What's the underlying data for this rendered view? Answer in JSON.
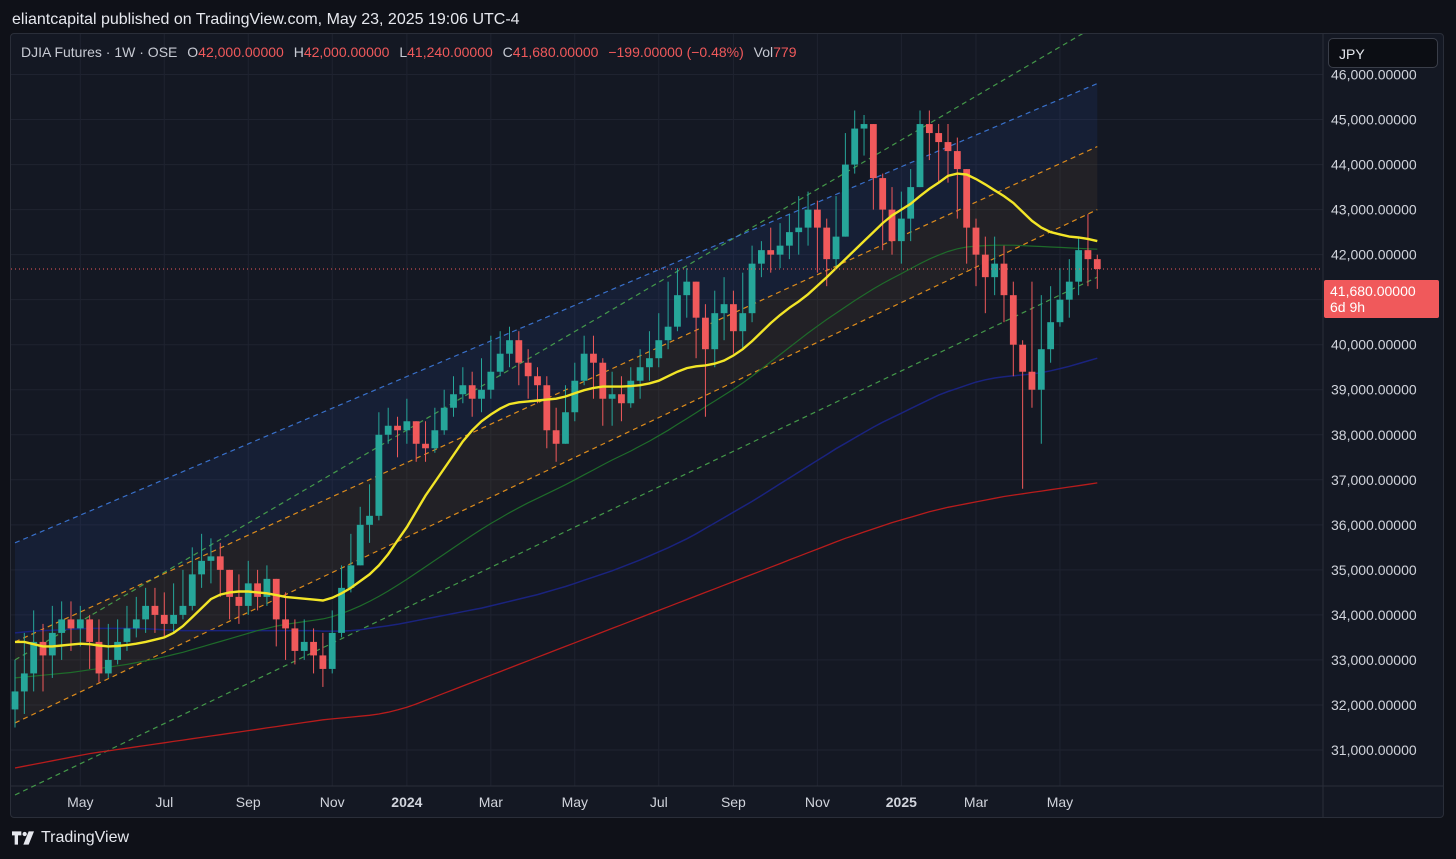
{
  "header": {
    "published": "eliantcapital published on TradingView.com, May 23, 2025 19:06 UTC-4"
  },
  "legend": {
    "symbol": "DJIA Futures · 1W · OSE",
    "o_label": "O",
    "o": "42,000.00000",
    "h_label": "H",
    "h": "42,000.00000",
    "l_label": "L",
    "l": "41,240.00000",
    "c_label": "C",
    "c": "41,680.00000",
    "change": "−199.00000 (−0.48%)",
    "vol_label": "Vol",
    "vol": "779"
  },
  "currency": "JPY",
  "last_price": {
    "value": "41,680.00000",
    "countdown": "6d 9h"
  },
  "footer": {
    "brand": "TradingView"
  },
  "colors": {
    "up": "#26a69a",
    "down": "#f0595b",
    "ma_fast": "#f2e527",
    "ma_mid": "#1e6b2a",
    "ma_slow": "#1a237e",
    "ma_long": "#b71c1c"
  },
  "chart_data": {
    "type": "candlestick",
    "title": "DJIA Futures · 1W · OSE",
    "ylim": [
      30200,
      46900
    ],
    "y_ticks": [
      "46,000.00000",
      "45,000.00000",
      "44,000.00000",
      "43,000.00000",
      "42,000.00000",
      "41,000.00000",
      "40,000.00000",
      "39,000.00000",
      "38,000.00000",
      "37,000.00000",
      "36,000.00000",
      "35,000.00000",
      "34,000.00000",
      "33,000.00000",
      "32,000.00000",
      "31,000.00000"
    ],
    "y_tick_values": [
      46000,
      45000,
      44000,
      43000,
      42000,
      41000,
      40000,
      39000,
      38000,
      37000,
      36000,
      35000,
      34000,
      33000,
      32000,
      31000
    ],
    "x_ticks": [
      {
        "label": "May",
        "week": 7,
        "bold": false
      },
      {
        "label": "Jul",
        "week": 16,
        "bold": false
      },
      {
        "label": "Sep",
        "week": 25,
        "bold": false
      },
      {
        "label": "Nov",
        "week": 34,
        "bold": false
      },
      {
        "label": "2024",
        "week": 42,
        "bold": true
      },
      {
        "label": "Mar",
        "week": 51,
        "bold": false
      },
      {
        "label": "May",
        "week": 60,
        "bold": false
      },
      {
        "label": "Jul",
        "week": 69,
        "bold": false
      },
      {
        "label": "Sep",
        "week": 77,
        "bold": false
      },
      {
        "label": "Nov",
        "week": 86,
        "bold": false
      },
      {
        "label": "2025",
        "week": 95,
        "bold": true
      },
      {
        "label": "Mar",
        "week": 103,
        "bold": false
      },
      {
        "label": "May",
        "week": 112,
        "bold": false
      }
    ],
    "closes": [
      32300,
      32700,
      33400,
      33100,
      33600,
      33900,
      33700,
      33900,
      33400,
      32700,
      33000,
      33400,
      33700,
      33900,
      34200,
      34000,
      33800,
      34000,
      34200,
      34900,
      35200,
      35300,
      35000,
      34400,
      34200,
      34700,
      34400,
      34800,
      33900,
      33700,
      33200,
      33400,
      33100,
      32800,
      33600,
      34600,
      35100,
      36000,
      36200,
      38000,
      38200,
      38100,
      38300,
      37800,
      37700,
      38100,
      38600,
      38900,
      39100,
      38800,
      39000,
      39400,
      39800,
      40100,
      39600,
      39300,
      39100,
      38100,
      37800,
      38500,
      39200,
      39800,
      39600,
      38800,
      38900,
      38700,
      39200,
      39500,
      39700,
      40100,
      40400,
      41100,
      41400,
      40600,
      39900,
      40700,
      40900,
      40300,
      40700,
      41800,
      42100,
      42000,
      42200,
      42500,
      42600,
      43000,
      42600,
      41900,
      42400,
      44000,
      44800,
      44900,
      43700,
      43000,
      42300,
      42800,
      43500,
      44900,
      44700,
      44500,
      44300,
      43900,
      42600,
      42000,
      41500,
      41800,
      41100,
      40000,
      39400,
      39000,
      39900,
      40500,
      41000,
      41400,
      42100,
      41900,
      41680
    ],
    "lows": [
      31500,
      31800,
      32300,
      32300,
      32600,
      33000,
      33200,
      33300,
      32800,
      32500,
      32600,
      32900,
      33200,
      33500,
      33600,
      33600,
      33500,
      33600,
      33900,
      34100,
      34600,
      34700,
      34400,
      33900,
      33800,
      34000,
      34100,
      34200,
      33300,
      33000,
      32900,
      33000,
      32700,
      32400,
      32700,
      33500,
      34500,
      35100,
      35600,
      36100,
      37800,
      37500,
      37800,
      37400,
      37400,
      37600,
      38000,
      38400,
      38700,
      38400,
      38500,
      38800,
      39300,
      39500,
      39100,
      38800,
      38700,
      37700,
      37400,
      37800,
      38300,
      39100,
      38800,
      38200,
      38200,
      38300,
      38600,
      38800,
      39200,
      39500,
      39900,
      40300,
      40600,
      39700,
      38400,
      39500,
      40100,
      39800,
      39900,
      40500,
      41500,
      41600,
      41700,
      41900,
      42000,
      42200,
      41600,
      41300,
      41700,
      42500,
      43800,
      44200,
      43000,
      42100,
      42000,
      41800,
      42300,
      43800,
      44100,
      43600,
      43600,
      42800,
      41800,
      41300,
      40700,
      41100,
      40500,
      39300,
      36800,
      38600,
      37800,
      39600,
      40400,
      40600,
      41100,
      41300,
      41240
    ],
    "highs": [
      33000,
      33600,
      34100,
      33800,
      34200,
      34300,
      34300,
      34200,
      34000,
      33900,
      33800,
      33900,
      34200,
      34400,
      34600,
      34600,
      34500,
      34700,
      35000,
      35500,
      35800,
      35700,
      35600,
      35000,
      34900,
      35200,
      35000,
      35100,
      34700,
      34500,
      33900,
      33900,
      33700,
      33600,
      34100,
      35100,
      35800,
      36400,
      36900,
      38500,
      38600,
      38400,
      38800,
      38300,
      38300,
      38600,
      39000,
      39300,
      39500,
      39400,
      39700,
      40200,
      40300,
      40400,
      40300,
      39900,
      39500,
      39300,
      38600,
      39100,
      39600,
      40200,
      40200,
      39700,
      39400,
      39300,
      39500,
      39900,
      40300,
      40700,
      41400,
      41700,
      41700,
      41400,
      40900,
      41200,
      41500,
      41200,
      41600,
      42200,
      42300,
      42600,
      42700,
      42900,
      43300,
      43400,
      43200,
      42800,
      43300,
      44700,
      45200,
      45100,
      44800,
      43800,
      43500,
      43400,
      43900,
      45200,
      45200,
      44900,
      44900,
      44600,
      43800,
      42800,
      42400,
      42400,
      42200,
      41400,
      40100,
      41400,
      41100,
      41300,
      41700,
      41900,
      42400,
      42900,
      42000
    ],
    "ma_fast": [
      33400,
      33400,
      33350,
      33300,
      33300,
      33320,
      33340,
      33360,
      33350,
      33320,
      33300,
      33310,
      33330,
      33360,
      33400,
      33450,
      33500,
      33600,
      33750,
      33950,
      34150,
      34350,
      34450,
      34500,
      34520,
      34520,
      34500,
      34480,
      34440,
      34400,
      34380,
      34360,
      34340,
      34320,
      34380,
      34480,
      34600,
      34750,
      34900,
      35100,
      35350,
      35650,
      35950,
      36300,
      36650,
      36950,
      37250,
      37550,
      37850,
      38100,
      38300,
      38450,
      38580,
      38680,
      38720,
      38740,
      38760,
      38780,
      38800,
      38850,
      38920,
      38990,
      39040,
      39070,
      39070,
      39070,
      39080,
      39100,
      39140,
      39200,
      39300,
      39400,
      39480,
      39520,
      39540,
      39580,
      39650,
      39760,
      39900,
      40080,
      40280,
      40480,
      40660,
      40820,
      40960,
      41120,
      41310,
      41500,
      41700,
      41900,
      42100,
      42300,
      42500,
      42700,
      42870,
      43000,
      43130,
      43300,
      43460,
      43600,
      43750,
      43800,
      43780,
      43680,
      43560,
      43430,
      43300,
      43150,
      42950,
      42750,
      42600,
      42500,
      42450,
      42400,
      42380,
      42350,
      42300
    ],
    "ma_mid": [
      32600,
      32620,
      32640,
      32660,
      32680,
      32700,
      32720,
      32750,
      32780,
      32810,
      32840,
      32870,
      32900,
      32940,
      32980,
      33020,
      33070,
      33120,
      33170,
      33230,
      33290,
      33350,
      33410,
      33470,
      33530,
      33590,
      33650,
      33700,
      33750,
      33790,
      33820,
      33850,
      33880,
      33910,
      33960,
      34030,
      34110,
      34200,
      34300,
      34410,
      34530,
      34660,
      34790,
      34930,
      35070,
      35210,
      35350,
      35490,
      35630,
      35770,
      35900,
      36030,
      36150,
      36270,
      36380,
      36490,
      36590,
      36690,
      36790,
      36890,
      37000,
      37110,
      37220,
      37330,
      37440,
      37540,
      37640,
      37750,
      37860,
      37980,
      38100,
      38230,
      38360,
      38490,
      38620,
      38750,
      38880,
      39010,
      39150,
      39300,
      39460,
      39620,
      39780,
      39940,
      40100,
      40260,
      40410,
      40560,
      40700,
      40840,
      40980,
      41110,
      41240,
      41360,
      41470,
      41580,
      41690,
      41800,
      41900,
      41990,
      42070,
      42130,
      42170,
      42190,
      42200,
      42210,
      42210,
      42210,
      42200,
      42190,
      42180,
      42170,
      42160,
      42150,
      42140,
      42130,
      42120
    ],
    "ma_slow": [
      33600,
      33620,
      33640,
      33650,
      33660,
      33670,
      33680,
      33690,
      33700,
      33700,
      33700,
      33700,
      33700,
      33700,
      33690,
      33680,
      33670,
      33660,
      33650,
      33650,
      33650,
      33650,
      33650,
      33650,
      33650,
      33650,
      33650,
      33650,
      33650,
      33650,
      33650,
      33650,
      33650,
      33640,
      33640,
      33640,
      33650,
      33670,
      33700,
      33730,
      33760,
      33790,
      33830,
      33870,
      33910,
      33950,
      33990,
      34030,
      34070,
      34110,
      34150,
      34200,
      34250,
      34300,
      34350,
      34400,
      34450,
      34510,
      34570,
      34630,
      34700,
      34770,
      34840,
      34910,
      34980,
      35060,
      35140,
      35220,
      35310,
      35400,
      35490,
      35590,
      35690,
      35800,
      35920,
      36040,
      36160,
      36280,
      36400,
      36520,
      36650,
      36780,
      36910,
      37040,
      37170,
      37300,
      37430,
      37560,
      37690,
      37810,
      37930,
      38050,
      38170,
      38280,
      38380,
      38480,
      38580,
      38680,
      38780,
      38880,
      38960,
      39030,
      39100,
      39170,
      39220,
      39260,
      39290,
      39310,
      39330,
      39350,
      39380,
      39420,
      39470,
      39520,
      39580,
      39640,
      39700
    ],
    "ma_long": [
      30600,
      30640,
      30680,
      30720,
      30760,
      30800,
      30840,
      30880,
      30920,
      30950,
      30980,
      31010,
      31040,
      31070,
      31100,
      31130,
      31160,
      31190,
      31220,
      31250,
      31280,
      31310,
      31340,
      31370,
      31400,
      31430,
      31460,
      31490,
      31520,
      31550,
      31580,
      31610,
      31640,
      31670,
      31690,
      31710,
      31730,
      31750,
      31770,
      31800,
      31840,
      31890,
      31950,
      32020,
      32100,
      32180,
      32260,
      32340,
      32420,
      32500,
      32580,
      32660,
      32740,
      32820,
      32900,
      32980,
      33060,
      33140,
      33220,
      33300,
      33380,
      33460,
      33540,
      33620,
      33700,
      33780,
      33860,
      33940,
      34020,
      34100,
      34180,
      34260,
      34340,
      34420,
      34500,
      34580,
      34660,
      34740,
      34820,
      34900,
      34980,
      35060,
      35140,
      35220,
      35300,
      35380,
      35460,
      35540,
      35620,
      35700,
      35770,
      35840,
      35910,
      35980,
      36050,
      36110,
      36170,
      36230,
      36290,
      36340,
      36390,
      36430,
      36470,
      36510,
      36550,
      36590,
      36630,
      36660,
      36690,
      36720,
      36750,
      36780,
      36810,
      36840,
      36870,
      36900,
      36930
    ],
    "channels": [
      {
        "color": "#4caf50",
        "x0": 0,
        "y0": 33000,
        "x1": 116,
        "y1": 47100
      },
      {
        "color": "#3f7fe6",
        "x0": 0,
        "y0": 35600,
        "x1": 116,
        "y1": 45800
      },
      {
        "color": "#ff9f1a",
        "x0": 0,
        "y0": 33400,
        "x1": 116,
        "y1": 44400
      },
      {
        "color": "#ff9f1a",
        "x0": 0,
        "y0": 31600,
        "x1": 116,
        "y1": 43000
      },
      {
        "color": "#4caf50",
        "x0": 0,
        "y0": 30000,
        "x1": 116,
        "y1": 41500
      }
    ],
    "last_price_line": 41680
  }
}
